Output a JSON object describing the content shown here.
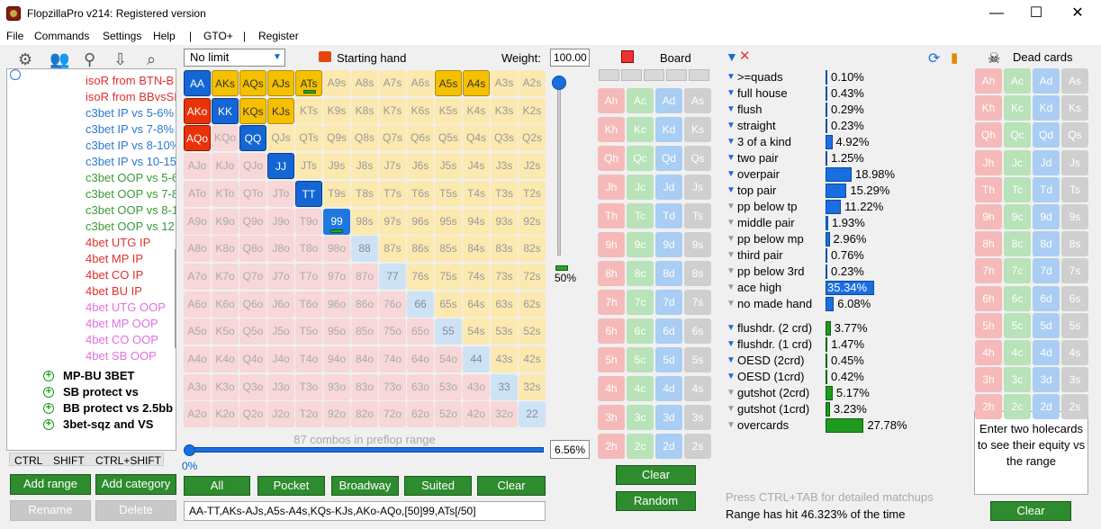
{
  "window": {
    "title": "FlopzillaPro v214: Registered version",
    "minimize": "—",
    "maximize": "☐",
    "close": "✕"
  },
  "menu": [
    "File",
    "Commands",
    "Settings",
    "Help",
    "|",
    "GTO+",
    "|",
    "Register"
  ],
  "tree": {
    "items": [
      {
        "label": "isoR from BTN-B",
        "color": "#e03030"
      },
      {
        "label": "isoR from BBvsSB",
        "color": "#e03030"
      },
      {
        "label": "c3bet IP vs 5-6%",
        "color": "#2a7ad0"
      },
      {
        "label": "c3bet IP vs 7-8%",
        "color": "#2a7ad0"
      },
      {
        "label": "c3bet IP vs 8-10%",
        "color": "#2a7ad0"
      },
      {
        "label": "c3bet IP vs 10-15",
        "color": "#2a7ad0"
      },
      {
        "label": "c3bet OOP vs 5-6",
        "color": "#3a9a3a"
      },
      {
        "label": "c3bet OOP vs 7-8",
        "color": "#3a9a3a"
      },
      {
        "label": "c3bet OOP vs 8-10",
        "color": "#3a9a3a"
      },
      {
        "label": "c3bet OOP vs 12",
        "color": "#3a9a3a"
      },
      {
        "label": "4bet UTG IP",
        "color": "#e03030"
      },
      {
        "label": "4bet MP IP",
        "color": "#e03030"
      },
      {
        "label": "4bet CO IP",
        "color": "#e03030"
      },
      {
        "label": "4bet BU IP",
        "color": "#e03030"
      },
      {
        "label": "4bet UTG OOP",
        "color": "#e070e0"
      },
      {
        "label": "4bet MP OOP",
        "color": "#e070e0"
      },
      {
        "label": "4bet CO OOP",
        "color": "#e070e0"
      },
      {
        "label": "4bet SB OOP",
        "color": "#e070e0"
      }
    ],
    "groups": [
      "MP-BU 3BET",
      "SB protect vs",
      "BB protect vs 2.5bb",
      "3bet-sqz and VS"
    ]
  },
  "modkeys": [
    "CTRL",
    "SHIFT",
    "CTRL+SHIFT"
  ],
  "left_buttons": {
    "add_range": "Add range",
    "add_category": "Add category",
    "rename": "Rename",
    "delete": "Delete"
  },
  "range": {
    "limit": "No limit",
    "starting_hand_label": "Starting hand",
    "weight_label": "Weight:",
    "weight_value": "100.00",
    "vslider_pct": "50%",
    "combos_text": "87 combos in preflop range",
    "hslider_left": "0%",
    "hslider_value": "6.56%",
    "text": "AA-TT,AKs-AJs,A5s-A4s,KQs-KJs,AKo-AQo,[50]99,ATs[/50]",
    "buttons": [
      "All",
      "Pocket",
      "Broadway",
      "Suited",
      "Clear"
    ]
  },
  "hand_grid": {
    "ranks": [
      "A",
      "K",
      "Q",
      "J",
      "T",
      "9",
      "8",
      "7",
      "6",
      "5",
      "4",
      "3",
      "2"
    ],
    "selected": [
      "AA",
      "KK",
      "QQ",
      "JJ",
      "TT",
      "AKs",
      "AQs",
      "AJs",
      "A5s",
      "A4s",
      "KQs",
      "KJs",
      "AKo",
      "AQo"
    ],
    "half": [
      "99",
      "ATs"
    ]
  },
  "board": {
    "label": "Board",
    "clear": "Clear",
    "random": "Random",
    "suits": [
      "h",
      "c",
      "d",
      "s"
    ]
  },
  "stats": {
    "items": [
      {
        "label": ">=quads",
        "value": "0.10%",
        "fill": 0.1,
        "active": true
      },
      {
        "label": "full house",
        "value": "0.43%",
        "fill": 0.43,
        "active": true
      },
      {
        "label": "flush",
        "value": "0.29%",
        "fill": 0.29,
        "active": true
      },
      {
        "label": "straight",
        "value": "0.23%",
        "fill": 0.23,
        "active": true
      },
      {
        "label": "3 of a kind",
        "value": "4.92%",
        "fill": 4.92,
        "active": true
      },
      {
        "label": "two pair",
        "value": "1.25%",
        "fill": 1.25,
        "active": true
      },
      {
        "label": "overpair",
        "value": "18.98%",
        "fill": 18.98,
        "active": true
      },
      {
        "label": "top pair",
        "value": "15.29%",
        "fill": 15.29,
        "active": true
      },
      {
        "label": "pp below tp",
        "value": "11.22%",
        "fill": 11.22,
        "active": false
      },
      {
        "label": "middle pair",
        "value": "1.93%",
        "fill": 1.93,
        "active": false
      },
      {
        "label": "pp below mp",
        "value": "2.96%",
        "fill": 2.96,
        "active": false
      },
      {
        "label": "third pair",
        "value": "0.76%",
        "fill": 0.76,
        "active": false
      },
      {
        "label": "pp below 3rd",
        "value": "0.23%",
        "fill": 0.23,
        "active": false
      },
      {
        "label": "ace high",
        "value": "35.34%",
        "fill": 35.34,
        "active": false
      },
      {
        "label": "no made hand",
        "value": "6.08%",
        "fill": 6.08,
        "active": false
      }
    ],
    "draws": [
      {
        "label": "flushdr. (2 crd)",
        "value": "3.77%",
        "fill": 3.77,
        "active": true
      },
      {
        "label": "flushdr. (1 crd)",
        "value": "1.47%",
        "fill": 1.47,
        "active": true
      },
      {
        "label": "OESD (2crd)",
        "value": "0.45%",
        "fill": 0.45,
        "active": true
      },
      {
        "label": "OESD (1crd)",
        "value": "0.42%",
        "fill": 0.42,
        "active": true
      },
      {
        "label": "gutshot (2crd)",
        "value": "5.17%",
        "fill": 5.17,
        "active": false
      },
      {
        "label": "gutshot (1crd)",
        "value": "3.23%",
        "fill": 3.23,
        "active": false
      },
      {
        "label": "overcards",
        "value": "27.78%",
        "fill": 27.78,
        "active": false
      }
    ],
    "hint": "Press CTRL+TAB for detailed matchups",
    "hit": "Range has hit 46.323% of the time"
  },
  "dead": {
    "label": "Dead cards",
    "equity_text": "Enter two holecards to see their equity vs the range",
    "clear": "Clear"
  }
}
